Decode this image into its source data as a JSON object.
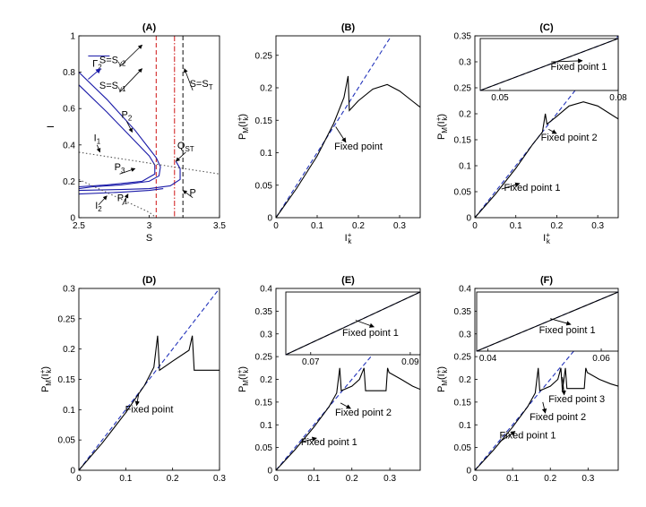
{
  "figure": {
    "panel_labels": [
      "(A)",
      "(B)",
      "(C)",
      "(D)",
      "(E)",
      "(F)"
    ]
  },
  "chart_data": [
    {
      "panel": "(A)",
      "type": "line",
      "title": "(A)",
      "xlabel": "S",
      "ylabel": "I",
      "xlim": [
        2.5,
        3.5
      ],
      "ylim": [
        0,
        1
      ],
      "xticks": [
        "2.5",
        "3",
        "3.5"
      ],
      "yticks": [
        "0",
        "0.2",
        "0.4",
        "0.6",
        "0.8",
        "1"
      ],
      "grid": false,
      "series": [
        {
          "name": "Γ2",
          "color": "#1a1aa8",
          "values": [
            [
              2.5,
              0.8
            ],
            [
              2.7,
              0.65
            ],
            [
              2.9,
              0.48
            ],
            [
              3.0,
              0.38
            ],
            [
              3.05,
              0.33
            ],
            [
              3.08,
              0.28
            ],
            [
              3.07,
              0.23
            ],
            [
              3.0,
              0.2
            ],
            [
              2.8,
              0.18
            ],
            [
              2.6,
              0.17
            ],
            [
              2.5,
              0.16
            ]
          ]
        },
        {
          "color": "#1a1aa8",
          "values": [
            [
              2.5,
              0.73
            ],
            [
              2.7,
              0.58
            ],
            [
              2.9,
              0.42
            ],
            [
              3.0,
              0.34
            ],
            [
              3.04,
              0.29
            ],
            [
              3.04,
              0.24
            ],
            [
              2.95,
              0.2
            ],
            [
              2.7,
              0.18
            ],
            [
              2.5,
              0.17
            ]
          ]
        },
        {
          "color": "#1a1aa8",
          "values": [
            [
              2.5,
              0.15
            ],
            [
              2.8,
              0.155
            ],
            [
              3.0,
              0.16
            ],
            [
              3.15,
              0.175
            ],
            [
              3.22,
              0.21
            ],
            [
              3.22,
              0.27
            ],
            [
              3.19,
              0.31
            ]
          ]
        },
        {
          "color": "#1a1aa8",
          "values": [
            [
              2.5,
              0.13
            ],
            [
              2.8,
              0.14
            ],
            [
              3.0,
              0.15
            ],
            [
              3.1,
              0.16
            ]
          ]
        },
        {
          "color": "#555555",
          "dash": "dot",
          "values": [
            [
              2.5,
              0.36
            ],
            [
              3.0,
              0.3
            ],
            [
              3.5,
              0.24
            ]
          ]
        },
        {
          "color": "#555555",
          "dash": "dot",
          "values": [
            [
              2.5,
              0.21
            ],
            [
              2.75,
              0.12
            ],
            [
              3.0,
              0.03
            ],
            [
              3.05,
              0.0
            ]
          ]
        }
      ],
      "vlines": [
        {
          "x": 3.05,
          "color": "#d42a2a",
          "dash": "dash"
        },
        {
          "x": 3.18,
          "color": "#d42a2a",
          "dash": "dashdot"
        },
        {
          "x": 3.24,
          "color": "#222222",
          "dash": "dash"
        }
      ],
      "annotations": [
        {
          "text": "S=S",
          "sub": "v2",
          "x": 2.74,
          "y": 0.85
        },
        {
          "text": "S=S",
          "sub": "v1",
          "x": 2.74,
          "y": 0.71
        },
        {
          "text": "S=S",
          "sub": "T",
          "x": 3.37,
          "y": 0.72
        },
        {
          "text": "Γ",
          "sub": "2",
          "x": 2.63,
          "y": 0.83,
          "color": "#1a1aa8"
        },
        {
          "text": "P",
          "sub": "2",
          "x": 2.84,
          "y": 0.55
        },
        {
          "text": "I",
          "sub": "1",
          "x": 2.63,
          "y": 0.42
        },
        {
          "text": "P",
          "sub": "3",
          "x": 2.79,
          "y": 0.26
        },
        {
          "text": "Q",
          "sub": "ST",
          "x": 3.26,
          "y": 0.38
        },
        {
          "text": "P",
          "sub": "1",
          "x": 2.81,
          "y": 0.09
        },
        {
          "text": "P",
          "sub": "",
          "x": 3.31,
          "y": 0.12
        },
        {
          "text": "I",
          "sub": "2",
          "x": 2.64,
          "y": 0.05
        }
      ]
    },
    {
      "panel": "(B)",
      "type": "line",
      "title": "(B)",
      "xlabel": "I*k",
      "ylabel": "PM(I*k)",
      "xlim": [
        0,
        0.35
      ],
      "ylim": [
        0,
        0.28
      ],
      "xticks": [
        "0",
        "0.1",
        "0.2",
        "0.3"
      ],
      "yticks": [
        "0",
        "0.05",
        "0.1",
        "0.15",
        "0.2",
        "0.25"
      ],
      "grid": false,
      "series": [
        {
          "name": "identity",
          "color": "#2233bb",
          "dash": "dash",
          "values": [
            [
              0,
              0
            ],
            [
              0.35,
              0.35
            ]
          ]
        },
        {
          "name": "map",
          "color": "#000000",
          "values": [
            [
              0,
              0
            ],
            [
              0.05,
              0.045
            ],
            [
              0.1,
              0.095
            ],
            [
              0.14,
              0.145
            ],
            [
              0.165,
              0.185
            ],
            [
              0.175,
              0.218
            ],
            [
              0.178,
              0.165
            ],
            [
              0.2,
              0.18
            ],
            [
              0.235,
              0.198
            ],
            [
              0.27,
              0.205
            ],
            [
              0.3,
              0.195
            ],
            [
              0.33,
              0.18
            ],
            [
              0.35,
              0.17
            ]
          ]
        }
      ],
      "annotations": [
        {
          "text": "Fixed point",
          "x": 0.2,
          "y": 0.105,
          "arrow_to": [
            0.145,
            0.14
          ]
        }
      ]
    },
    {
      "panel": "(C)",
      "type": "line",
      "title": "(C)",
      "xlabel": "I*k",
      "ylabel": "PM(I*k)",
      "xlim": [
        0,
        0.35
      ],
      "ylim": [
        0,
        0.35
      ],
      "xticks": [
        "0",
        "0.1",
        "0.2",
        "0.3"
      ],
      "yticks": [
        "0",
        "0.05",
        "0.1",
        "0.15",
        "0.2",
        "0.25",
        "0.3",
        "0.35"
      ],
      "grid": false,
      "series": [
        {
          "name": "identity",
          "color": "#2233bb",
          "dash": "dash",
          "values": [
            [
              0,
              0
            ],
            [
              0.35,
              0.35
            ]
          ]
        },
        {
          "name": "map",
          "color": "#000000",
          "values": [
            [
              0,
              0
            ],
            [
              0.05,
              0.045
            ],
            [
              0.1,
              0.095
            ],
            [
              0.14,
              0.14
            ],
            [
              0.165,
              0.165
            ],
            [
              0.172,
              0.2
            ],
            [
              0.176,
              0.18
            ],
            [
              0.2,
              0.195
            ],
            [
              0.23,
              0.215
            ],
            [
              0.265,
              0.223
            ],
            [
              0.3,
              0.215
            ],
            [
              0.33,
              0.2
            ],
            [
              0.35,
              0.19
            ]
          ]
        }
      ],
      "inset": {
        "xlim": [
          0.045,
          0.08
        ],
        "xticks": [
          "0.05",
          "0.08"
        ],
        "series": [
          {
            "color": "#2233bb",
            "dash": "dash",
            "values": [
              [
                0.045,
                0.0
              ],
              [
                0.08,
                1.0
              ]
            ]
          },
          {
            "color": "#000000",
            "values": [
              [
                0.045,
                0.0
              ],
              [
                0.08,
                1.0
              ]
            ]
          }
        ],
        "annotations": [
          {
            "text": "Fixed point 1",
            "x": 0.07,
            "y": 0.4,
            "arrow_to": [
              0.063,
              0.55
            ]
          }
        ]
      },
      "annotations": [
        {
          "text": "Fixed point 2",
          "x": 0.23,
          "y": 0.148,
          "arrow_to": [
            0.18,
            0.17
          ]
        },
        {
          "text": "Fixed point 1",
          "x": 0.14,
          "y": 0.052,
          "arrow_to": [
            0.065,
            0.055
          ]
        }
      ]
    },
    {
      "panel": "(D)",
      "type": "line",
      "title": "(D)",
      "xlabel": "",
      "ylabel": "PM(I*k)",
      "xlim": [
        0,
        0.3
      ],
      "ylim": [
        0,
        0.3
      ],
      "xticks": [
        "0",
        "0.1",
        "0.2",
        "0.3"
      ],
      "yticks": [
        "0",
        "0.05",
        "0.1",
        "0.15",
        "0.2",
        "0.25",
        "0.3"
      ],
      "grid": false,
      "series": [
        {
          "name": "identity",
          "color": "#2233bb",
          "dash": "dash",
          "values": [
            [
              0,
              0
            ],
            [
              0.3,
              0.3
            ]
          ]
        },
        {
          "name": "map",
          "color": "#000000",
          "values": [
            [
              0,
              0
            ],
            [
              0.05,
              0.045
            ],
            [
              0.1,
              0.095
            ],
            [
              0.14,
              0.14
            ],
            [
              0.16,
              0.17
            ],
            [
              0.168,
              0.222
            ],
            [
              0.172,
              0.165
            ],
            [
              0.2,
              0.18
            ],
            [
              0.235,
              0.198
            ],
            [
              0.242,
              0.222
            ],
            [
              0.246,
              0.165
            ],
            [
              0.3,
              0.165
            ]
          ]
        }
      ],
      "annotations": [
        {
          "text": "Fixed point",
          "x": 0.15,
          "y": 0.095,
          "arrow_to": [
            0.128,
            0.128
          ]
        }
      ]
    },
    {
      "panel": "(E)",
      "type": "line",
      "title": "(E)",
      "xlabel": "",
      "ylabel": "PM(I*k)",
      "xlim": [
        0,
        0.38
      ],
      "ylim": [
        0,
        0.4
      ],
      "xticks": [
        "0",
        "0.1",
        "0.2",
        "0.3"
      ],
      "yticks": [
        "0",
        "0.05",
        "0.1",
        "0.15",
        "0.2",
        "0.25",
        "0.3",
        "0.35",
        "0.4"
      ],
      "grid": false,
      "series": [
        {
          "name": "identity",
          "color": "#2233bb",
          "dash": "dash",
          "values": [
            [
              0,
              0
            ],
            [
              0.38,
              0.38
            ]
          ]
        },
        {
          "name": "map",
          "color": "#000000",
          "values": [
            [
              0,
              0
            ],
            [
              0.05,
              0.045
            ],
            [
              0.1,
              0.095
            ],
            [
              0.14,
              0.14
            ],
            [
              0.16,
              0.17
            ],
            [
              0.168,
              0.225
            ],
            [
              0.172,
              0.175
            ],
            [
              0.2,
              0.185
            ],
            [
              0.22,
              0.2
            ],
            [
              0.232,
              0.225
            ],
            [
              0.236,
              0.175
            ],
            [
              0.29,
              0.175
            ],
            [
              0.294,
              0.225
            ],
            [
              0.298,
              0.215
            ],
            [
              0.33,
              0.2
            ],
            [
              0.36,
              0.185
            ],
            [
              0.38,
              0.178
            ]
          ]
        }
      ],
      "inset": {
        "xlim": [
          0.065,
          0.092
        ],
        "xticks": [
          "0.07",
          "0.09"
        ],
        "series": [
          {
            "color": "#2233bb",
            "dash": "dash",
            "values": [
              [
                0.065,
                0.0
              ],
              [
                0.092,
                1.0
              ]
            ]
          },
          {
            "color": "#000000",
            "values": [
              [
                0.065,
                0.0
              ],
              [
                0.092,
                1.0
              ]
            ]
          }
        ],
        "annotations": [
          {
            "text": "Fixed point 1",
            "x": 0.082,
            "y": 0.3,
            "arrow_to": [
              0.079,
              0.55
            ]
          }
        ]
      },
      "annotations": [
        {
          "text": "Fixed point 2",
          "x": 0.23,
          "y": 0.12,
          "arrow_to": [
            0.17,
            0.148
          ]
        },
        {
          "text": "Fixed point 1",
          "x": 0.14,
          "y": 0.055,
          "arrow_to": [
            0.065,
            0.062
          ]
        }
      ]
    },
    {
      "panel": "(F)",
      "type": "line",
      "title": "(F)",
      "xlabel": "",
      "ylabel": "PM(I*k)",
      "xlim": [
        0,
        0.38
      ],
      "ylim": [
        0,
        0.4
      ],
      "xticks": [
        "0",
        "0.1",
        "0.2",
        "0.3"
      ],
      "yticks": [
        "0",
        "0.05",
        "0.1",
        "0.15",
        "0.2",
        "0.25",
        "0.3",
        "0.35",
        "0.4"
      ],
      "grid": false,
      "series": [
        {
          "name": "identity",
          "color": "#2233bb",
          "dash": "dash",
          "values": [
            [
              0,
              0
            ],
            [
              0.38,
              0.38
            ]
          ]
        },
        {
          "name": "map",
          "color": "#000000",
          "values": [
            [
              0,
              0
            ],
            [
              0.05,
              0.045
            ],
            [
              0.1,
              0.095
            ],
            [
              0.14,
              0.14
            ],
            [
              0.16,
              0.17
            ],
            [
              0.168,
              0.225
            ],
            [
              0.172,
              0.175
            ],
            [
              0.2,
              0.185
            ],
            [
              0.22,
              0.2
            ],
            [
              0.228,
              0.225
            ],
            [
              0.232,
              0.175
            ],
            [
              0.236,
              0.2
            ],
            [
              0.24,
              0.225
            ],
            [
              0.244,
              0.18
            ],
            [
              0.29,
              0.18
            ],
            [
              0.294,
              0.225
            ],
            [
              0.298,
              0.215
            ],
            [
              0.33,
              0.2
            ],
            [
              0.36,
              0.19
            ],
            [
              0.38,
              0.185
            ]
          ]
        }
      ],
      "inset": {
        "xlim": [
          0.038,
          0.063
        ],
        "xticks": [
          "0.04",
          "0.06"
        ],
        "series": [
          {
            "color": "#2233bb",
            "dash": "dash",
            "values": [
              [
                0.038,
                0.0
              ],
              [
                0.063,
                1.0
              ]
            ]
          },
          {
            "color": "#000000",
            "values": [
              [
                0.038,
                0.0
              ],
              [
                0.063,
                1.0
              ]
            ]
          }
        ],
        "annotations": [
          {
            "text": "Fixed point 1",
            "x": 0.054,
            "y": 0.3,
            "arrow_to": [
              0.051,
              0.55
            ]
          }
        ]
      },
      "annotations": [
        {
          "text": "Fixed point 3",
          "x": 0.27,
          "y": 0.15,
          "arrow_to": [
            0.232,
            0.205
          ]
        },
        {
          "text": "Fixed point 2",
          "x": 0.22,
          "y": 0.11,
          "arrow_to": [
            0.18,
            0.15
          ]
        },
        {
          "text": "Fixed point 1",
          "x": 0.14,
          "y": 0.07,
          "arrow_to": [
            0.065,
            0.062
          ]
        }
      ]
    }
  ]
}
